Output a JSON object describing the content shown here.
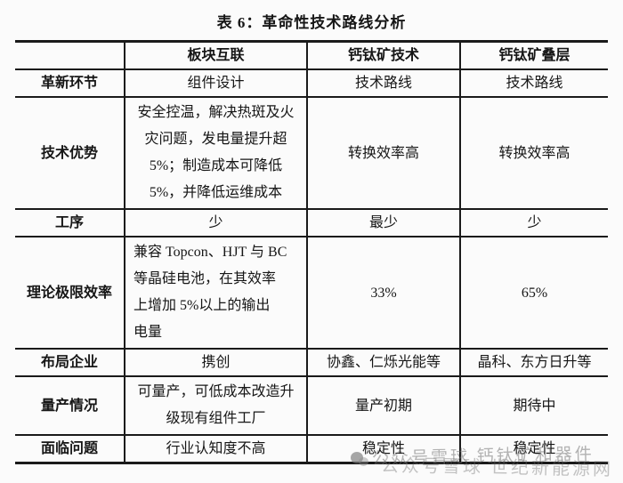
{
  "page": {
    "title": "表 6：革命性技术路线分析"
  },
  "table": {
    "column_headers": [
      "",
      "板块互联",
      "钙钛矿技术",
      "钙钛矿叠层"
    ],
    "rows": [
      {
        "header": "革新环节",
        "cells": [
          "组件设计",
          "技术路线",
          "技术路线"
        ]
      },
      {
        "header": "技术优势",
        "cells": [
          "安全控温，解决热斑及火\n灾问题，发电量提升超\n5%；制造成本可降低\n5%，并降低运维成本",
          "转换效率高",
          "转换效率高"
        ]
      },
      {
        "header": "工序",
        "cells": [
          "少",
          "最少",
          "少"
        ]
      },
      {
        "header": "理论极限效率",
        "cells": [
          "兼容 Topcon、HJT 与 BC\n等晶硅电池，在其效率\n上增加 5%以上的输出\n电量",
          "33%",
          "65%"
        ]
      },
      {
        "header": "布局企业",
        "cells": [
          "携创",
          "协鑫、仁烁光能等",
          "晶科、东方日升等"
        ]
      },
      {
        "header": "量产情况",
        "cells": [
          "可量产，可低成本改造升\n级现有组件工厂",
          "量产初期",
          "期待中"
        ]
      },
      {
        "header": "面临问题",
        "cells": [
          "行业认知度不高",
          "稳定性",
          "稳定性"
        ]
      }
    ]
  },
  "watermark": {
    "icon": "wechat-official-account-logo",
    "line_top": "公众号雪球 钙钛矿和器件",
    "line_bottom": "公众号雪球 世纪新能源网"
  },
  "colors": {
    "background": "#fbfbfb",
    "border": "#1a1a1a",
    "text": "#161616",
    "watermark": "#6e6e6e"
  }
}
